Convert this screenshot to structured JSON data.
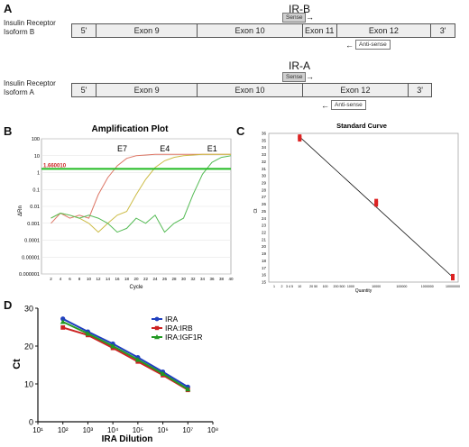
{
  "panelA": {
    "letter": "A",
    "isoB": {
      "label_line1": "Insulin Receptor",
      "label_line2": "Isoform B",
      "segments": [
        "5'",
        "Exon 9",
        "Exon 10",
        "Exon 11",
        "Exon 12",
        "3'"
      ],
      "primer_title": "IR-B",
      "sense": "Sense",
      "antisense": "Anti-sense"
    },
    "isoA": {
      "label_line1": "Insulin Receptor",
      "label_line2": "Isoform A",
      "segments": [
        "5'",
        "Exon 9",
        "Exon 10",
        "Exon 12",
        "3'"
      ],
      "primer_title": "IR-A",
      "sense": "Sense",
      "antisense": "Anti-sense"
    }
  },
  "panelB": {
    "letter": "B",
    "title": "Amplification Plot",
    "ylabel": "ΔRn",
    "xlabel": "Cycle",
    "threshold_label": "1.660010",
    "curve_labels": [
      "E7",
      "E4",
      "E1"
    ],
    "colors": {
      "threshold": "#22bb22",
      "E7": "#dd7766",
      "E4": "#ccbb44",
      "E1": "#55bb55"
    }
  },
  "panelC": {
    "letter": "C",
    "title": "Standard Curve",
    "ylabel": "Ct",
    "xlabel": "Quantity",
    "y_ticks": [
      "36",
      "35",
      "34",
      "33",
      "32",
      "31",
      "30",
      "29",
      "28",
      "27",
      "26",
      "25",
      "24",
      "23",
      "22",
      "21",
      "20",
      "19",
      "18",
      "17",
      "16",
      "15"
    ],
    "x_ticks": [
      "1",
      "2",
      "3 4 5",
      "10",
      "20 50",
      "100",
      "200 500",
      "1000",
      "10000",
      "100000",
      "1000000",
      "10000000"
    ],
    "point_color": "#dd2222"
  },
  "chart_data": [
    {
      "type": "line",
      "title": "Amplification Plot",
      "xlabel": "Cycle",
      "ylabel": "ΔRn",
      "yscale": "log",
      "xlim": [
        0,
        40
      ],
      "ylim": [
        1e-06,
        100
      ],
      "x_ticks": [
        2,
        4,
        6,
        8,
        10,
        12,
        14,
        16,
        18,
        20,
        22,
        24,
        26,
        28,
        30,
        32,
        34,
        36,
        38,
        40
      ],
      "y_ticks": [
        "100",
        "10",
        "1",
        "0.1",
        "0.01",
        "0.001",
        "0.0001",
        "0.00001",
        "0.000001"
      ],
      "threshold": 1.66001,
      "series": [
        {
          "name": "E7",
          "x": [
            2,
            4,
            6,
            8,
            10,
            12,
            14,
            16,
            18,
            20,
            22,
            24,
            26,
            28,
            30,
            32,
            34,
            36,
            38,
            40
          ],
          "y": [
            0.001,
            0.004,
            0.002,
            0.003,
            0.002,
            0.05,
            0.5,
            2.5,
            7,
            10,
            11,
            12,
            12,
            12,
            12,
            12,
            12,
            12,
            12,
            12
          ]
        },
        {
          "name": "E4",
          "x": [
            2,
            4,
            6,
            8,
            10,
            12,
            14,
            16,
            18,
            20,
            22,
            24,
            26,
            28,
            30,
            32,
            34,
            36,
            38,
            40
          ],
          "y": [
            0.002,
            0.004,
            0.003,
            0.002,
            0.001,
            0.0003,
            0.001,
            0.003,
            0.005,
            0.05,
            0.4,
            2,
            5,
            8,
            10,
            11,
            12,
            12,
            12,
            12
          ]
        },
        {
          "name": "E1",
          "x": [
            2,
            4,
            6,
            8,
            10,
            12,
            14,
            16,
            18,
            20,
            22,
            24,
            26,
            28,
            30,
            32,
            34,
            36,
            38,
            40
          ],
          "y": [
            0.002,
            0.004,
            0.003,
            0.002,
            0.003,
            0.002,
            0.001,
            0.0003,
            0.0005,
            0.002,
            0.001,
            0.003,
            0.0003,
            0.001,
            0.002,
            0.05,
            0.8,
            4,
            8,
            10
          ]
        }
      ]
    },
    {
      "type": "scatter",
      "title": "Standard Curve",
      "xlabel": "Quantity",
      "ylabel": "Ct",
      "xscale": "log",
      "xlim": [
        1,
        10000000
      ],
      "ylim": [
        15,
        36
      ],
      "points_x": [
        10,
        10,
        10,
        10000,
        10000,
        10000,
        10000000,
        10000000
      ],
      "points_y": [
        35.1,
        35.4,
        35.6,
        25.9,
        26.2,
        26.5,
        15.5,
        15.9
      ],
      "fit_line": {
        "x": [
          10,
          10000000
        ],
        "y": [
          35.5,
          15.7
        ]
      }
    },
    {
      "type": "line",
      "title": "",
      "xlabel": "IRA Dilution",
      "ylabel": "Ct",
      "xscale": "log",
      "x_tick_labels": [
        "10¹",
        "10²",
        "10³",
        "10⁴",
        "10⁵",
        "10⁶",
        "10⁷",
        "10⁸"
      ],
      "y_ticks": [
        0,
        10,
        20,
        30
      ],
      "ylim": [
        0,
        30
      ],
      "legend": "top-right",
      "series": [
        {
          "name": "IRA",
          "color": "#1f3fbf",
          "marker": "circle",
          "x": [
            100,
            1000,
            10000,
            100000,
            1000000,
            10000000
          ],
          "y": [
            27.2,
            23.8,
            20.6,
            17.0,
            13.2,
            9.2
          ]
        },
        {
          "name": "IRA:IRB",
          "color": "#cc2222",
          "marker": "square",
          "x": [
            100,
            1000,
            10000,
            100000,
            1000000,
            10000000
          ],
          "y": [
            24.9,
            22.9,
            19.5,
            15.9,
            12.3,
            8.4
          ]
        },
        {
          "name": "IRA:IGF1R",
          "color": "#229922",
          "marker": "triangle",
          "x": [
            100,
            1000,
            10000,
            100000,
            1000000,
            10000000
          ],
          "y": [
            26.4,
            23.3,
            20.0,
            16.4,
            12.7,
            8.6
          ]
        }
      ]
    }
  ],
  "panelD": {
    "letter": "D",
    "ylabel": "Ct",
    "xlabel": "IRA Dilution",
    "legend": [
      "IRA",
      "IRA:IRB",
      "IRA:IGF1R"
    ],
    "y_tick_labels": [
      "0",
      "10",
      "20",
      "30"
    ],
    "x_tick_labels": [
      "10¹",
      "10²",
      "10³",
      "10⁴",
      "10⁵",
      "10⁶",
      "10⁷",
      "10⁸"
    ]
  }
}
